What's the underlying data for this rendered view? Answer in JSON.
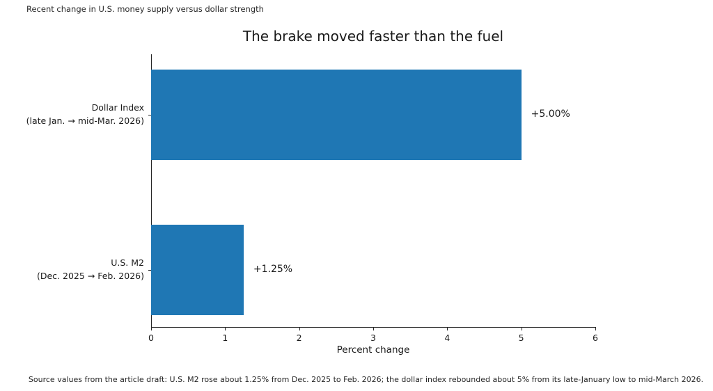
{
  "figure": {
    "header_note": "Recent change in U.S. money supply versus dollar strength",
    "source_note": "Source values from the article draft: U.S. M2 rose about 1.25% from Dec. 2025 to Feb. 2026; the dollar index rebounded about 5% from its late-January low to mid-March 2026."
  },
  "chart_data": {
    "type": "bar",
    "orientation": "horizontal",
    "title": "The brake moved faster than the fuel",
    "xlabel": "Percent change",
    "ylabel": "",
    "categories": [
      "Dollar Index\n(late Jan. → mid-Mar. 2026)",
      "U.S. M2\n(Dec. 2025 → Feb. 2026)"
    ],
    "values": [
      5.0,
      1.25
    ],
    "bar_labels": [
      "+5.00%",
      "+1.25%"
    ],
    "xlim": [
      0,
      6
    ],
    "xticks": [
      0,
      1,
      2,
      3,
      4,
      5,
      6
    ],
    "grid": false,
    "legend": null,
    "colors": {
      "bar": "#1f77b4",
      "text": "#1a1a1a",
      "axis": "#262626"
    }
  }
}
